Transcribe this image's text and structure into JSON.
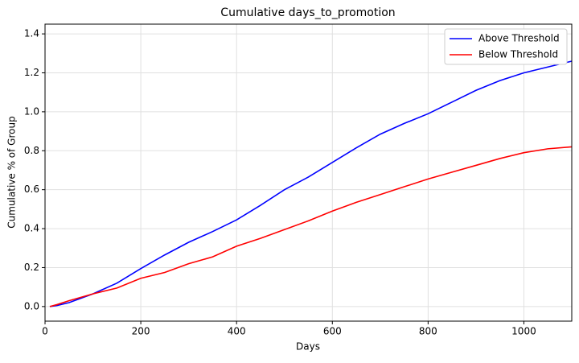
{
  "chart_data": {
    "type": "line",
    "title": "Cumulative days_to_promotion",
    "x_label": "Days",
    "y_label": "Cumulative % of Group",
    "x": [
      10,
      25,
      50,
      100,
      150,
      200,
      250,
      300,
      350,
      400,
      450,
      500,
      550,
      600,
      650,
      700,
      750,
      800,
      850,
      900,
      950,
      1000,
      1050,
      1100
    ],
    "series": [
      {
        "name": "Above Threshold",
        "color": "#0000ff",
        "values": [
          0,
          0.005,
          0.02,
          0.065,
          0.12,
          0.195,
          0.265,
          0.33,
          0.385,
          0.445,
          0.52,
          0.6,
          0.665,
          0.74,
          0.815,
          0.885,
          0.94,
          0.99,
          1.05,
          1.11,
          1.16,
          1.2,
          1.23,
          1.26
        ]
      },
      {
        "name": "Below Threshold",
        "color": "#ff0000",
        "values": [
          0,
          0.01,
          0.03,
          0.065,
          0.095,
          0.145,
          0.175,
          0.22,
          0.255,
          0.31,
          0.35,
          0.395,
          0.44,
          0.49,
          0.535,
          0.575,
          0.615,
          0.655,
          0.69,
          0.725,
          0.76,
          0.79,
          0.81,
          0.82
        ]
      }
    ],
    "xlim": [
      0,
      1100
    ],
    "xticks": [
      0,
      200,
      400,
      600,
      800,
      1000
    ],
    "ylim": [
      -0.075,
      1.45
    ],
    "yticks": [
      {
        "value": 0,
        "label": "0.0"
      },
      0.2,
      0.4,
      0.6,
      0.8,
      {
        "value": 1,
        "label": "1.0"
      },
      1.2,
      1.4
    ],
    "grid": true,
    "legend": "upper right"
  }
}
